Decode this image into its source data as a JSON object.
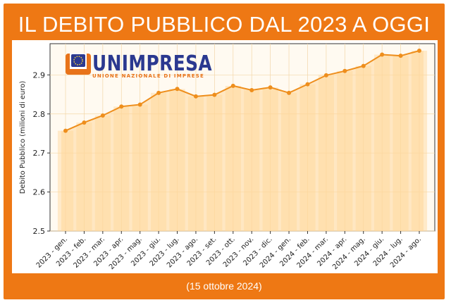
{
  "header": {
    "title": "IL DEBITO PUBBLICO DAL 2023 A OGGI"
  },
  "footer": {
    "date": "(15 ottobre 2024)"
  },
  "logo": {
    "name": "UNIMPRESA",
    "subtitle": "UNIONE NAZIONALE DI IMPRESE",
    "primary_color": "#e8731a",
    "secondary_color": "#2b3990"
  },
  "colors": {
    "frame": "#ee7814",
    "line": "#ee8e1c",
    "area": "#ffd79a",
    "grid": "#f3d6a8",
    "plot_bg": "#fffaf1"
  },
  "chart_data": {
    "type": "line",
    "title": "IL DEBITO PUBBLICO DAL 2023 A OGGI",
    "xlabel": "",
    "ylabel": "Debito Pubblico (milioni di euro)",
    "ylim": [
      2.5,
      2.98
    ],
    "yticks": [
      "2.5",
      "2.6",
      "2.7",
      "2.8",
      "2.9"
    ],
    "grid": true,
    "categories": [
      "2023 - gen.",
      "2023 - feb.",
      "2023 - mar.",
      "2023 - apr.",
      "2023 - mag.",
      "2023 - giu.",
      "2023 - lug.",
      "2023 - ago.",
      "2023 - set.",
      "2023 - ott.",
      "2023 - nov.",
      "2023 - dic.",
      "2024 - gen.",
      "2024 - feb.",
      "2024 - mar.",
      "2024 - apr.",
      "2024 - mag.",
      "2024 - giu.",
      "2024 - lug.",
      "2024 - ago."
    ],
    "series": [
      {
        "name": "Debito Pubblico",
        "values": [
          2.757,
          2.778,
          2.796,
          2.819,
          2.824,
          2.854,
          2.864,
          2.845,
          2.849,
          2.872,
          2.861,
          2.868,
          2.854,
          2.876,
          2.899,
          2.91,
          2.923,
          2.952,
          2.949,
          2.962
        ]
      }
    ]
  }
}
